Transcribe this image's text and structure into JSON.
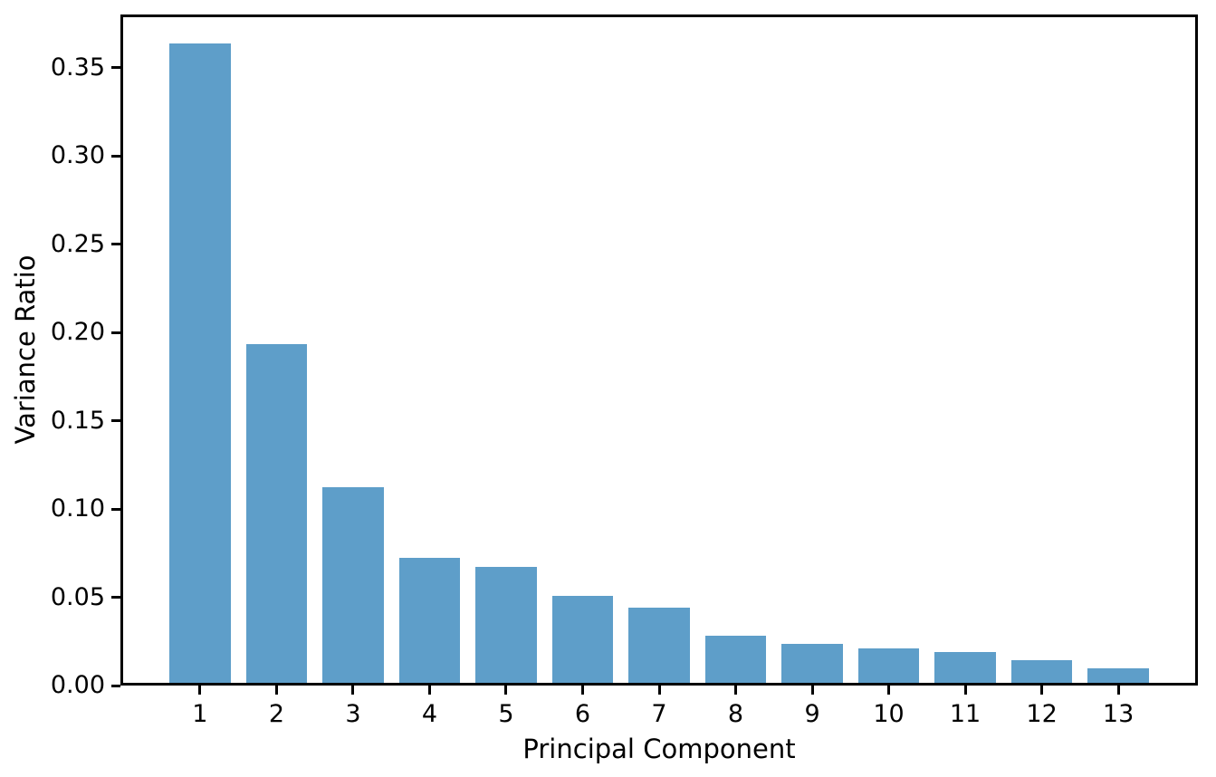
{
  "chart_data": {
    "type": "bar",
    "title": "",
    "xlabel": "Principal Component",
    "ylabel": "Variance Ratio",
    "categories": [
      "1",
      "2",
      "3",
      "4",
      "5",
      "6",
      "7",
      "8",
      "9",
      "10",
      "11",
      "12",
      "13"
    ],
    "values": [
      0.362,
      0.192,
      0.111,
      0.0707,
      0.0656,
      0.0494,
      0.0424,
      0.0268,
      0.0222,
      0.0193,
      0.0174,
      0.013,
      0.008
    ],
    "ylim": [
      0,
      0.38
    ],
    "yticks": [
      0.0,
      0.05,
      0.1,
      0.15,
      0.2,
      0.25,
      0.3,
      0.35
    ],
    "ytick_labels": [
      "0.00",
      "0.05",
      "0.10",
      "0.15",
      "0.20",
      "0.25",
      "0.30",
      "0.35"
    ],
    "bar_color": "#5E9EC9",
    "axis_color": "#000000",
    "text_color": "#000000",
    "background_color": "#ffffff",
    "grid": false,
    "legend": "none",
    "bar_relative_width": 0.8
  }
}
